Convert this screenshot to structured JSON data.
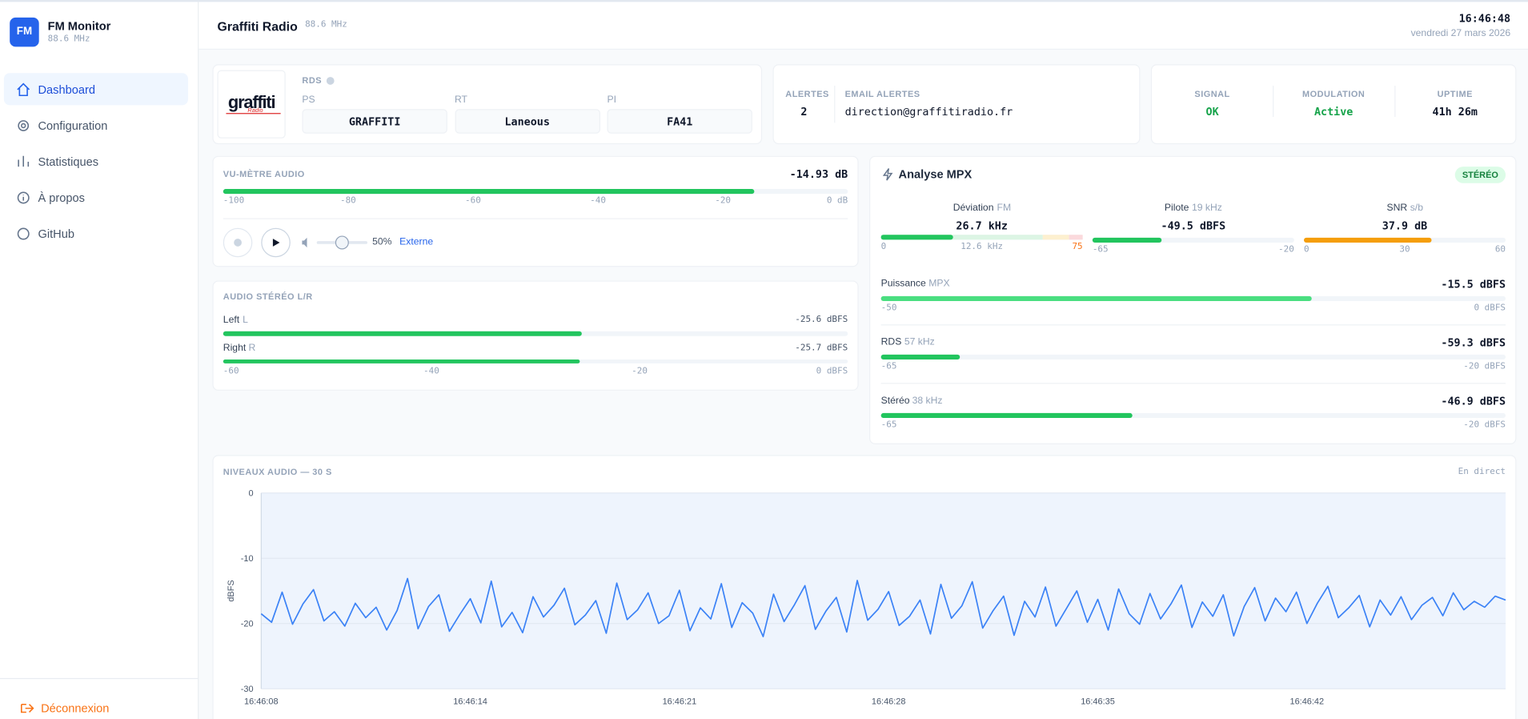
{
  "sidebar": {
    "logo": "FM",
    "app_name": "FM Monitor",
    "frequency": "88.6 MHz",
    "nav": [
      "Dashboard",
      "Configuration",
      "Statistiques",
      "À propos",
      "GitHub"
    ],
    "logout": "Déconnexion"
  },
  "header": {
    "station": "Graffiti Radio",
    "frequency": "88.6 MHz",
    "time": "16:46:48",
    "date": "vendredi 27 mars 2026"
  },
  "rds": {
    "logo_text": "graffiti",
    "logo_subtext": "Radio",
    "title": "RDS",
    "fields": [
      {
        "label": "PS",
        "value": "GRAFFITI"
      },
      {
        "label": "RT",
        "value": "Laneous"
      },
      {
        "label": "PI",
        "value": "FA41"
      }
    ]
  },
  "alerts": {
    "count_label": "ALERTES",
    "count": "2",
    "email_label": "EMAIL ALERTES",
    "email": "direction@graffitiradio.fr"
  },
  "status": [
    {
      "label": "SIGNAL",
      "value": "OK"
    },
    {
      "label": "MODULATION",
      "value": "Active"
    },
    {
      "label": "UPTIME",
      "value": "41h 26m"
    }
  ],
  "vu_meter": {
    "title": "VU-MÈTRE AUDIO",
    "value": -14.93,
    "value_label": "-14.93 dB",
    "xlim": [
      -100,
      0
    ],
    "ticks": [
      -100,
      -80,
      -60,
      -40,
      -20,
      {
        "value": 0,
        "label": "0 dB"
      }
    ],
    "color": "#22c55e",
    "volume": 50,
    "volume_label": "50%",
    "source": "Externe"
  },
  "stereo": {
    "title": "AUDIO STÉRÉO L/R",
    "color": "#22c55e",
    "xlim": [
      -60,
      0
    ],
    "ticks": [
      -60,
      -40,
      -20,
      {
        "value": 0,
        "label": "0 dBFS"
      }
    ],
    "channels": [
      {
        "name": "Left",
        "unit": "L",
        "value": -25.6,
        "value_label": "-25.6 dBFS"
      },
      {
        "name": "Right",
        "unit": "R",
        "value": -25.7,
        "value_label": "-25.7 dBFS"
      }
    ]
  },
  "mpx": {
    "title": "Analyse MPX",
    "badge": "STÉRÉO",
    "top": [
      {
        "name": "Déviation",
        "unit": "FM",
        "value": 26.7,
        "value_label": "26.7 kHz",
        "sub": "12.6 kHz",
        "xlim": [
          0,
          75
        ],
        "ticks": [
          0,
          75
        ],
        "color": "#22c55e",
        "zones": [
          {
            "to": 60,
            "color": "#dcf5e4"
          },
          {
            "to": 70,
            "color": "#fdf0cf"
          },
          {
            "to": 75,
            "color": "#fbd9dc"
          }
        ]
      },
      {
        "name": "Pilote",
        "unit": "19 kHz",
        "value": -49.5,
        "value_label": "-49.5 dBFS",
        "xlim": [
          -65,
          -20
        ],
        "ticks": [
          -65,
          -20
        ],
        "color": "#22c55e"
      },
      {
        "name": "SNR",
        "unit": "s/b",
        "value": 37.9,
        "value_label": "37.9 dB",
        "xlim": [
          0,
          60
        ],
        "ticks": [
          0,
          30,
          60
        ],
        "color": "#f59e0b"
      }
    ],
    "rows": [
      {
        "name": "Puissance",
        "unit": "MPX",
        "value": -15.5,
        "value_label": "-15.5 dBFS",
        "xlim": [
          -50,
          0
        ],
        "ticks": [
          -50,
          {
            "value": 0,
            "label": "0 dBFS"
          }
        ],
        "color": "#4ade80"
      },
      {
        "name": "RDS",
        "unit": "57 kHz",
        "value": -59.3,
        "value_label": "-59.3 dBFS",
        "xlim": [
          -65,
          -20
        ],
        "ticks": [
          -65,
          {
            "value": -20,
            "label": "-20 dBFS"
          }
        ],
        "color": "#22c55e"
      },
      {
        "name": "Stéréo",
        "unit": "38 kHz",
        "value": -46.9,
        "value_label": "-46.9 dBFS",
        "xlim": [
          -65,
          -20
        ],
        "ticks": [
          -65,
          {
            "value": -20,
            "label": "-20 dBFS"
          }
        ],
        "color": "#22c55e"
      }
    ]
  },
  "chart_data": {
    "type": "line",
    "title": "NIVEAUX AUDIO — 30 S",
    "status": "En direct",
    "ylabel": "dBFS",
    "color": "#3b82f6",
    "ylim": [
      -30,
      0
    ],
    "yticks": [
      0,
      -10,
      -20,
      -30
    ],
    "grid": true,
    "categories": [
      "16:46:08",
      null,
      null,
      null,
      null,
      null,
      null,
      null,
      null,
      null,
      null,
      null,
      null,
      null,
      null,
      null,
      null,
      null,
      null,
      null,
      "16:46:14",
      null,
      null,
      null,
      null,
      null,
      null,
      null,
      null,
      null,
      null,
      null,
      null,
      null,
      null,
      null,
      null,
      null,
      null,
      null,
      "16:46:21",
      null,
      null,
      null,
      null,
      null,
      null,
      null,
      null,
      null,
      null,
      null,
      null,
      null,
      null,
      null,
      null,
      null,
      null,
      null,
      "16:46:28",
      null,
      null,
      null,
      null,
      null,
      null,
      null,
      null,
      null,
      null,
      null,
      null,
      null,
      null,
      null,
      null,
      null,
      null,
      null,
      "16:46:35",
      null,
      null,
      null,
      null,
      null,
      null,
      null,
      null,
      null,
      null,
      null,
      null,
      null,
      null,
      null,
      null,
      null,
      null,
      null,
      "16:46:42",
      null,
      null,
      null,
      null,
      null,
      null,
      null,
      null,
      null,
      null,
      null,
      null,
      null,
      null,
      null,
      null,
      null,
      null,
      null
    ],
    "values": [
      -18.5,
      -19.8,
      -15.2,
      -20.1,
      -17.0,
      -14.8,
      -19.6,
      -18.2,
      -20.4,
      -16.9,
      -19.1,
      -17.5,
      -21.0,
      -18.0,
      -13.1,
      -20.8,
      -17.4,
      -15.6,
      -21.2,
      -18.6,
      -16.2,
      -19.9,
      -13.5,
      -20.5,
      -18.3,
      -21.4,
      -15.9,
      -19.0,
      -17.2,
      -14.6,
      -20.2,
      -18.7,
      -16.5,
      -21.5,
      -13.8,
      -19.4,
      -17.9,
      -15.3,
      -20.0,
      -18.8,
      -14.9,
      -21.1,
      -17.6,
      -19.3,
      -13.9,
      -20.6,
      -16.8,
      -18.4,
      -22.0,
      -15.5,
      -19.7,
      -17.1,
      -14.2,
      -20.9,
      -18.1,
      -16.0,
      -21.3,
      -13.4,
      -19.5,
      -17.8,
      -15.1,
      -20.3,
      -18.9,
      -16.4,
      -21.6,
      -14.0,
      -19.2,
      -17.3,
      -13.6,
      -20.7,
      -18.0,
      -15.8,
      -21.8,
      -16.6,
      -19.0,
      -14.4,
      -20.4,
      -17.7,
      -15.0,
      -19.8,
      -16.3,
      -21.0,
      -14.7,
      -18.5,
      -20.1,
      -15.4,
      -19.3,
      -17.0,
      -14.1,
      -20.6,
      -16.7,
      -18.9,
      -15.6,
      -21.9,
      -17.4,
      -14.5,
      -19.6,
      -16.1,
      -18.2,
      -15.2,
      -20.0,
      -16.9,
      -14.3,
      -19.1,
      -17.6,
      -15.7,
      -20.5,
      -16.4,
      -18.7,
      -15.9,
      -19.4,
      -17.2,
      -16.0,
      -18.8,
      -15.3,
      -17.9,
      -16.6,
      -17.5,
      -15.8,
      -16.4
    ]
  }
}
